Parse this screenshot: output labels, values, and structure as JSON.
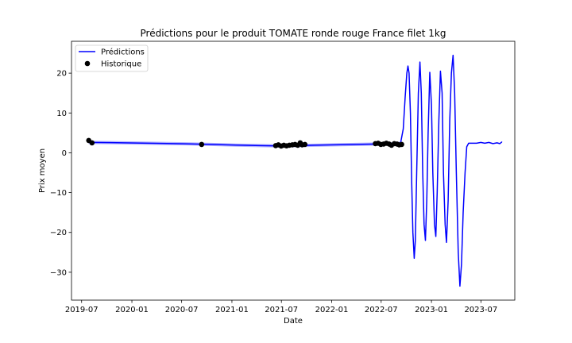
{
  "chart_data": {
    "type": "line",
    "title": "Prédictions pour le produit TOMATE ronde rouge France filet 1kg",
    "xlabel": "Date",
    "ylabel": "Prix moyen",
    "x_axis_type": "date",
    "xlim": [
      "2019-05-25",
      "2023-11-02"
    ],
    "ylim": [
      -37,
      28
    ],
    "xticks": [
      "2019-07",
      "2020-01",
      "2020-07",
      "2021-01",
      "2021-07",
      "2022-01",
      "2022-07",
      "2023-01",
      "2023-07"
    ],
    "yticks": [
      -30,
      -20,
      -10,
      0,
      10,
      20
    ],
    "legend": {
      "position": "upper-left",
      "entries": [
        "Prédictions",
        "Historique"
      ]
    },
    "colors": {
      "predictions": "#0000ff",
      "predictions_band": "#b0b0ff",
      "historique": "#000000"
    },
    "grid": false,
    "series": [
      {
        "name": "Prédictions",
        "kind": "line",
        "points": [
          [
            "2019-07-27",
            2.6
          ],
          [
            "2019-10-15",
            2.55
          ],
          [
            "2020-01-15",
            2.45
          ],
          [
            "2020-04-15",
            2.35
          ],
          [
            "2020-07-15",
            2.25
          ],
          [
            "2020-10-15",
            2.1
          ],
          [
            "2021-01-15",
            1.95
          ],
          [
            "2021-04-15",
            1.8
          ],
          [
            "2021-06-20",
            1.75
          ],
          [
            "2021-09-01",
            1.8
          ],
          [
            "2021-11-01",
            1.9
          ],
          [
            "2022-01-15",
            2.0
          ],
          [
            "2022-04-01",
            2.1
          ],
          [
            "2022-06-20",
            2.2
          ],
          [
            "2022-08-15",
            2.25
          ],
          [
            "2022-09-10",
            2.4
          ],
          [
            "2022-09-20",
            6
          ],
          [
            "2022-09-27",
            14
          ],
          [
            "2022-10-03",
            20
          ],
          [
            "2022-10-07",
            21.8
          ],
          [
            "2022-10-11",
            20
          ],
          [
            "2022-10-16",
            10
          ],
          [
            "2022-10-21",
            -8
          ],
          [
            "2022-10-25",
            -20
          ],
          [
            "2022-10-30",
            -26.5
          ],
          [
            "2022-11-03",
            -22
          ],
          [
            "2022-11-08",
            -5
          ],
          [
            "2022-11-14",
            15
          ],
          [
            "2022-11-20",
            22.8
          ],
          [
            "2022-11-25",
            15
          ],
          [
            "2022-11-30",
            -5
          ],
          [
            "2022-12-05",
            -18
          ],
          [
            "2022-12-10",
            -22
          ],
          [
            "2022-12-15",
            -12
          ],
          [
            "2022-12-20",
            5
          ],
          [
            "2022-12-26",
            20.2
          ],
          [
            "2023-01-01",
            12
          ],
          [
            "2023-01-06",
            -5
          ],
          [
            "2023-01-12",
            -18
          ],
          [
            "2023-01-17",
            -21
          ],
          [
            "2023-01-22",
            -10
          ],
          [
            "2023-01-28",
            8
          ],
          [
            "2023-02-03",
            20.5
          ],
          [
            "2023-02-09",
            15
          ],
          [
            "2023-02-14",
            -5
          ],
          [
            "2023-02-20",
            -18
          ],
          [
            "2023-02-25",
            -22.5
          ],
          [
            "2023-03-03",
            -12
          ],
          [
            "2023-03-09",
            8
          ],
          [
            "2023-03-15",
            20
          ],
          [
            "2023-03-21",
            24.5
          ],
          [
            "2023-03-27",
            15
          ],
          [
            "2023-04-02",
            -5
          ],
          [
            "2023-04-09",
            -25
          ],
          [
            "2023-04-15",
            -33.5
          ],
          [
            "2023-04-21",
            -28
          ],
          [
            "2023-04-27",
            -15
          ],
          [
            "2023-05-04",
            -5
          ],
          [
            "2023-05-10",
            1.5
          ],
          [
            "2023-05-17",
            2.4
          ],
          [
            "2023-06-01",
            2.4
          ],
          [
            "2023-06-15",
            2.4
          ],
          [
            "2023-07-01",
            2.6
          ],
          [
            "2023-07-15",
            2.4
          ],
          [
            "2023-07-30",
            2.6
          ],
          [
            "2023-08-14",
            2.3
          ],
          [
            "2023-08-29",
            2.5
          ],
          [
            "2023-09-08",
            2.3
          ],
          [
            "2023-09-15",
            2.7
          ]
        ]
      },
      {
        "name": "Historique",
        "kind": "scatter",
        "points": [
          [
            "2019-07-27",
            3.1
          ],
          [
            "2019-08-08",
            2.5
          ],
          [
            "2020-09-12",
            2.1
          ],
          [
            "2021-06-10",
            1.8
          ],
          [
            "2021-06-20",
            2.0
          ],
          [
            "2021-06-30",
            1.7
          ],
          [
            "2021-07-10",
            1.9
          ],
          [
            "2021-07-20",
            1.75
          ],
          [
            "2021-07-30",
            1.9
          ],
          [
            "2021-08-10",
            2.0
          ],
          [
            "2021-08-20",
            2.1
          ],
          [
            "2021-08-30",
            1.9
          ],
          [
            "2021-09-08",
            2.5
          ],
          [
            "2021-09-15",
            2.0
          ],
          [
            "2021-09-25",
            2.1
          ],
          [
            "2022-06-10",
            2.3
          ],
          [
            "2022-06-20",
            2.4
          ],
          [
            "2022-06-30",
            2.1
          ],
          [
            "2022-07-10",
            2.2
          ],
          [
            "2022-07-20",
            2.4
          ],
          [
            "2022-07-30",
            2.2
          ],
          [
            "2022-08-08",
            1.9
          ],
          [
            "2022-08-18",
            2.3
          ],
          [
            "2022-08-28",
            2.2
          ],
          [
            "2022-09-05",
            2.0
          ],
          [
            "2022-09-14",
            2.1
          ]
        ]
      }
    ]
  }
}
